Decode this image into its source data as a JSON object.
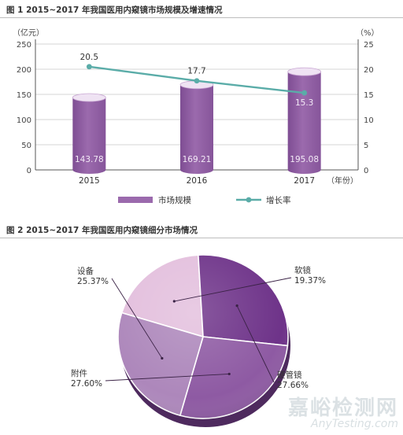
{
  "figures": {
    "fig1_title": "图 1   2015~2017 年我国医用内窥镜市场规模及增速情况",
    "fig2_title": "图 2   2015~2017 年我国医用内窥镜细分市场情况"
  },
  "watermark": {
    "cn": "嘉峪检测网",
    "en": "AnyTesting.com"
  },
  "colors": {
    "bar": "#9b6aad",
    "bar_top": "#efe3f3",
    "line": "#5aaca8",
    "grid": "#c8c8c8",
    "pie_slices": [
      "#e3bfdd",
      "#6e3389",
      "#8e5aa3",
      "#ad87bb"
    ]
  },
  "chart_data": [
    {
      "type": "bar",
      "title": "",
      "categories": [
        "2015",
        "2016",
        "2017"
      ],
      "xlabel": "（年份）",
      "ylabel_left": "（亿元）",
      "ylabel_right": "（%）",
      "ylim_left": [
        0,
        250
      ],
      "ylim_right": [
        0,
        25
      ],
      "yticks_left": [
        "0",
        "50",
        "100",
        "150",
        "200",
        "250"
      ],
      "yticks_right": [
        "0",
        "5",
        "10",
        "15",
        "20",
        "25"
      ],
      "grid": true,
      "legend_position": "bottom",
      "series": [
        {
          "name": "市场规模",
          "kind": "bar",
          "axis": "left",
          "values": [
            143.78,
            169.21,
            195.08
          ],
          "labels": [
            "143.78",
            "169.21",
            "195.08"
          ]
        },
        {
          "name": "增长率",
          "kind": "line",
          "axis": "right",
          "values": [
            20.5,
            17.7,
            15.3
          ],
          "labels": [
            "20.5",
            "17.7",
            "15.3"
          ]
        }
      ]
    },
    {
      "type": "pie",
      "title": "",
      "slices": [
        {
          "name": "软镜",
          "value": 19.37,
          "label": "19.37%"
        },
        {
          "name": "硬管镜",
          "value": 27.66,
          "label": "27.66%"
        },
        {
          "name": "附件",
          "value": 27.6,
          "label": "27.60%"
        },
        {
          "name": "设备",
          "value": 25.37,
          "label": "25.37%"
        }
      ]
    }
  ]
}
